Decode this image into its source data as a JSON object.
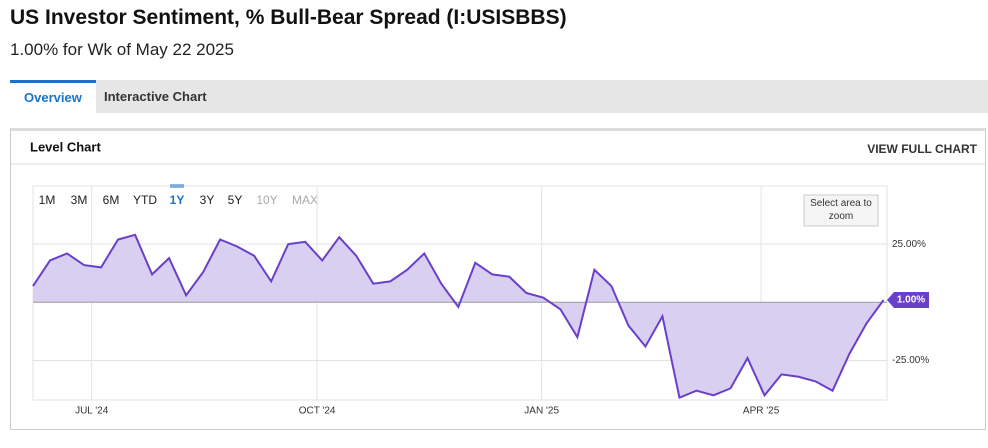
{
  "header": {
    "title": "US Investor Sentiment, % Bull-Bear Spread (I:USISBBS)",
    "subtitle": "1.00% for Wk of May 22 2025"
  },
  "tabs": [
    "Overview",
    "Interactive Chart"
  ],
  "panel": {
    "title": "Level Chart",
    "action": "VIEW FULL CHART"
  },
  "ranges": [
    "1M",
    "3M",
    "6M",
    "YTD",
    "1Y",
    "3Y",
    "5Y",
    "10Y",
    "MAX"
  ],
  "zoom_hint": "Select area to zoom",
  "chart_data": {
    "type": "area",
    "values": [
      7,
      18,
      21,
      16,
      15,
      27,
      29,
      12,
      19,
      3,
      13,
      27,
      24,
      20,
      9,
      25,
      26,
      18,
      28,
      20,
      8,
      9,
      14,
      21,
      8,
      -2,
      17,
      12,
      11,
      4,
      2,
      -3,
      -15,
      14,
      7,
      -10,
      -19,
      -6,
      -41,
      -38,
      -40,
      -37,
      -24,
      -40,
      -31,
      -32,
      -34,
      -38,
      -22,
      -9,
      1
    ],
    "last_value_label": "1.00%",
    "color": "#6a3fc9",
    "fill": "#d8cff1",
    "xlim": [
      0,
      50.2
    ],
    "xticks": [
      {
        "value": 3.45,
        "label": "JUL '24"
      },
      {
        "value": 16.7,
        "label": "OCT '24"
      },
      {
        "value": 29.9,
        "label": "JAN '25"
      },
      {
        "value": 42.8,
        "label": "APR '25"
      }
    ],
    "ylim": [
      -42,
      50
    ],
    "yticks": [
      {
        "value": 25,
        "label": "25.00%"
      },
      {
        "value": -25,
        "label": "-25.00%"
      }
    ],
    "grid": true
  }
}
